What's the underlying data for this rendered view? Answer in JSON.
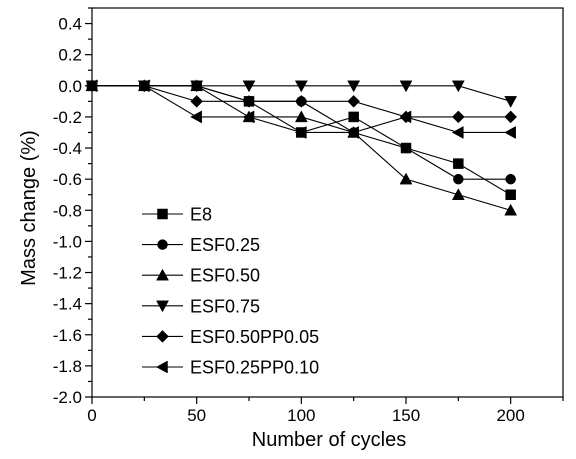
{
  "chart_data": {
    "type": "line",
    "title": "",
    "xlabel": "Number of cycles",
    "ylabel": "Mass change (%)",
    "xlim": [
      0,
      225
    ],
    "ylim": [
      -2.0,
      0.5
    ],
    "x_ticks": [
      0,
      50,
      100,
      150,
      200
    ],
    "x_tick_labels": [
      "0",
      "50",
      "100",
      "150",
      "200"
    ],
    "y_ticks": [
      0.4,
      0.2,
      0.0,
      -0.2,
      -0.4,
      -0.6,
      -0.8,
      -1.0,
      -1.2,
      -1.4,
      -1.6,
      -1.8,
      -2.0
    ],
    "y_tick_labels": [
      "0.4",
      "0.2",
      "0.0",
      "-0.2",
      "-0.4",
      "-0.6",
      "-0.8",
      "-1.0",
      "-1.2",
      "-1.4",
      "-1.6",
      "-1.8",
      "-2.0"
    ],
    "grid": false,
    "legend_position": "lower-left",
    "x": [
      0,
      25,
      50,
      75,
      100,
      125,
      150,
      175,
      200
    ],
    "series": [
      {
        "name": "E8",
        "marker": "square",
        "values": [
          0,
          0,
          0,
          -0.1,
          -0.3,
          -0.2,
          -0.4,
          -0.5,
          -0.7
        ]
      },
      {
        "name": "ESF0.25",
        "marker": "circle",
        "values": [
          0,
          0,
          0,
          -0.1,
          -0.1,
          -0.3,
          -0.4,
          -0.6,
          -0.6
        ]
      },
      {
        "name": "ESF0.50",
        "marker": "triangle-up",
        "values": [
          0,
          0,
          0,
          -0.2,
          -0.2,
          -0.3,
          -0.6,
          -0.7,
          -0.8
        ]
      },
      {
        "name": "ESF0.75",
        "marker": "triangle-down",
        "values": [
          0,
          0,
          0,
          0,
          0,
          0,
          0,
          0,
          -0.1
        ]
      },
      {
        "name": "ESF0.50PP0.05",
        "marker": "diamond",
        "values": [
          0,
          0,
          -0.1,
          -0.1,
          -0.1,
          -0.1,
          -0.2,
          -0.2,
          -0.2
        ]
      },
      {
        "name": "ESF0.25PP0.10",
        "marker": "triangle-left",
        "values": [
          0,
          0,
          -0.2,
          -0.2,
          -0.3,
          -0.3,
          -0.2,
          -0.3,
          -0.3
        ]
      }
    ]
  }
}
